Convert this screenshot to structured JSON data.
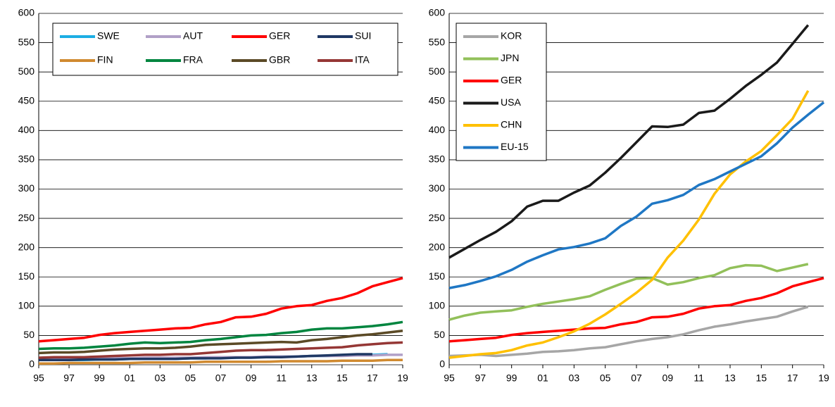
{
  "chart_data": [
    {
      "type": "line",
      "legend": "upper left",
      "legend_columns": 4,
      "grid": true,
      "categories": [
        "95",
        null,
        "97",
        null,
        "99",
        null,
        "01",
        null,
        "03",
        null,
        "05",
        null,
        "07",
        null,
        "09",
        null,
        "11",
        null,
        "13",
        null,
        "15",
        null,
        "17",
        null,
        "19"
      ],
      "ylim": [
        0,
        600
      ],
      "yticks": [
        0,
        50,
        100,
        150,
        200,
        250,
        300,
        350,
        400,
        450,
        500,
        550,
        600
      ],
      "series": [
        {
          "name": "SWE",
          "color": "#1CAEE4",
          "values": [
            8,
            8,
            8,
            8,
            9,
            9,
            10,
            10,
            10,
            10,
            11,
            11,
            12,
            12,
            13,
            13,
            14,
            14,
            15,
            15,
            16,
            16,
            17,
            18,
            null
          ]
        },
        {
          "name": "AUT",
          "color": "#B1A0C7",
          "values": [
            10,
            10,
            10,
            11,
            11,
            11,
            11,
            12,
            12,
            12,
            12,
            13,
            13,
            13,
            13,
            14,
            14,
            14,
            15,
            15,
            15,
            16,
            16,
            17,
            17
          ]
        },
        {
          "name": "GER",
          "color": "#FF0000",
          "values": [
            40,
            42,
            44,
            46,
            51,
            54,
            56,
            58,
            60,
            62,
            63,
            69,
            73,
            81,
            82,
            87,
            96,
            100,
            102,
            109,
            114,
            122,
            134,
            141,
            148
          ]
        },
        {
          "name": "SUI",
          "color": "#1F3864",
          "values": [
            8,
            8,
            8,
            9,
            9,
            9,
            10,
            10,
            10,
            10,
            11,
            11,
            11,
            12,
            12,
            13,
            13,
            14,
            15,
            16,
            17,
            18,
            18,
            null,
            null
          ]
        },
        {
          "name": "FIN",
          "color": "#D08A30",
          "values": [
            2,
            2,
            3,
            3,
            3,
            3,
            3,
            4,
            4,
            4,
            4,
            5,
            5,
            5,
            5,
            5,
            6,
            6,
            6,
            6,
            7,
            7,
            7,
            8,
            8
          ]
        },
        {
          "name": "FRA",
          "color": "#00853F",
          "values": [
            27,
            28,
            28,
            29,
            31,
            33,
            36,
            38,
            37,
            38,
            39,
            42,
            44,
            47,
            50,
            51,
            54,
            56,
            60,
            62,
            62,
            64,
            66,
            69,
            73
          ]
        },
        {
          "name": "GBR",
          "color": "#5B4A26",
          "values": [
            20,
            21,
            21,
            22,
            24,
            26,
            27,
            28,
            28,
            29,
            31,
            34,
            35,
            36,
            37,
            38,
            39,
            38,
            42,
            44,
            47,
            50,
            52,
            55,
            58
          ]
        },
        {
          "name": "ITA",
          "color": "#953735",
          "values": [
            12,
            13,
            13,
            13,
            14,
            15,
            16,
            17,
            17,
            18,
            18,
            20,
            22,
            24,
            25,
            25,
            26,
            27,
            28,
            29,
            30,
            33,
            35,
            37,
            38
          ]
        }
      ]
    },
    {
      "type": "line",
      "legend": "upper left",
      "legend_columns": 1,
      "grid": true,
      "categories": [
        "95",
        null,
        "97",
        null,
        "99",
        null,
        "01",
        null,
        "03",
        null,
        "05",
        null,
        "07",
        null,
        "09",
        null,
        "11",
        null,
        "13",
        null,
        "15",
        null,
        "17",
        null,
        "19"
      ],
      "ylim": [
        0,
        600
      ],
      "yticks": [
        0,
        50,
        100,
        150,
        200,
        250,
        300,
        350,
        400,
        450,
        500,
        550,
        600
      ],
      "series": [
        {
          "name": "KOR",
          "color": "#A6A6A6",
          "values": [
            15,
            16,
            17,
            15,
            17,
            19,
            22,
            23,
            25,
            28,
            30,
            35,
            40,
            44,
            47,
            52,
            59,
            65,
            69,
            74,
            78,
            82,
            91,
            99,
            null
          ]
        },
        {
          "name": "JPN",
          "color": "#92C05A",
          "values": [
            77,
            84,
            89,
            91,
            93,
            99,
            104,
            108,
            112,
            117,
            128,
            138,
            147,
            148,
            137,
            141,
            148,
            153,
            165,
            170,
            169,
            160,
            166,
            172,
            null
          ]
        },
        {
          "name": "GER",
          "color": "#FF0000",
          "values": [
            40,
            42,
            44,
            46,
            51,
            54,
            56,
            58,
            60,
            62,
            63,
            69,
            73,
            81,
            82,
            87,
            96,
            100,
            102,
            109,
            114,
            122,
            134,
            141,
            148
          ]
        },
        {
          "name": "USA",
          "color": "#1A1A1A",
          "values": [
            183,
            198,
            213,
            227,
            245,
            270,
            280,
            280,
            294,
            306,
            328,
            353,
            380,
            407,
            406,
            410,
            430,
            434,
            454,
            476,
            495,
            516,
            548,
            580,
            null
          ]
        },
        {
          "name": "CHN",
          "color": "#FFC000",
          "values": [
            12,
            15,
            18,
            20,
            25,
            33,
            38,
            47,
            57,
            70,
            86,
            104,
            123,
            145,
            183,
            212,
            248,
            292,
            325,
            347,
            365,
            392,
            420,
            468,
            null
          ]
        },
        {
          "name": "EU-15",
          "color": "#1F77C4",
          "values": [
            131,
            136,
            143,
            151,
            162,
            176,
            187,
            197,
            201,
            207,
            216,
            237,
            253,
            275,
            281,
            290,
            307,
            317,
            330,
            343,
            356,
            378,
            405,
            427,
            448
          ]
        }
      ]
    }
  ]
}
